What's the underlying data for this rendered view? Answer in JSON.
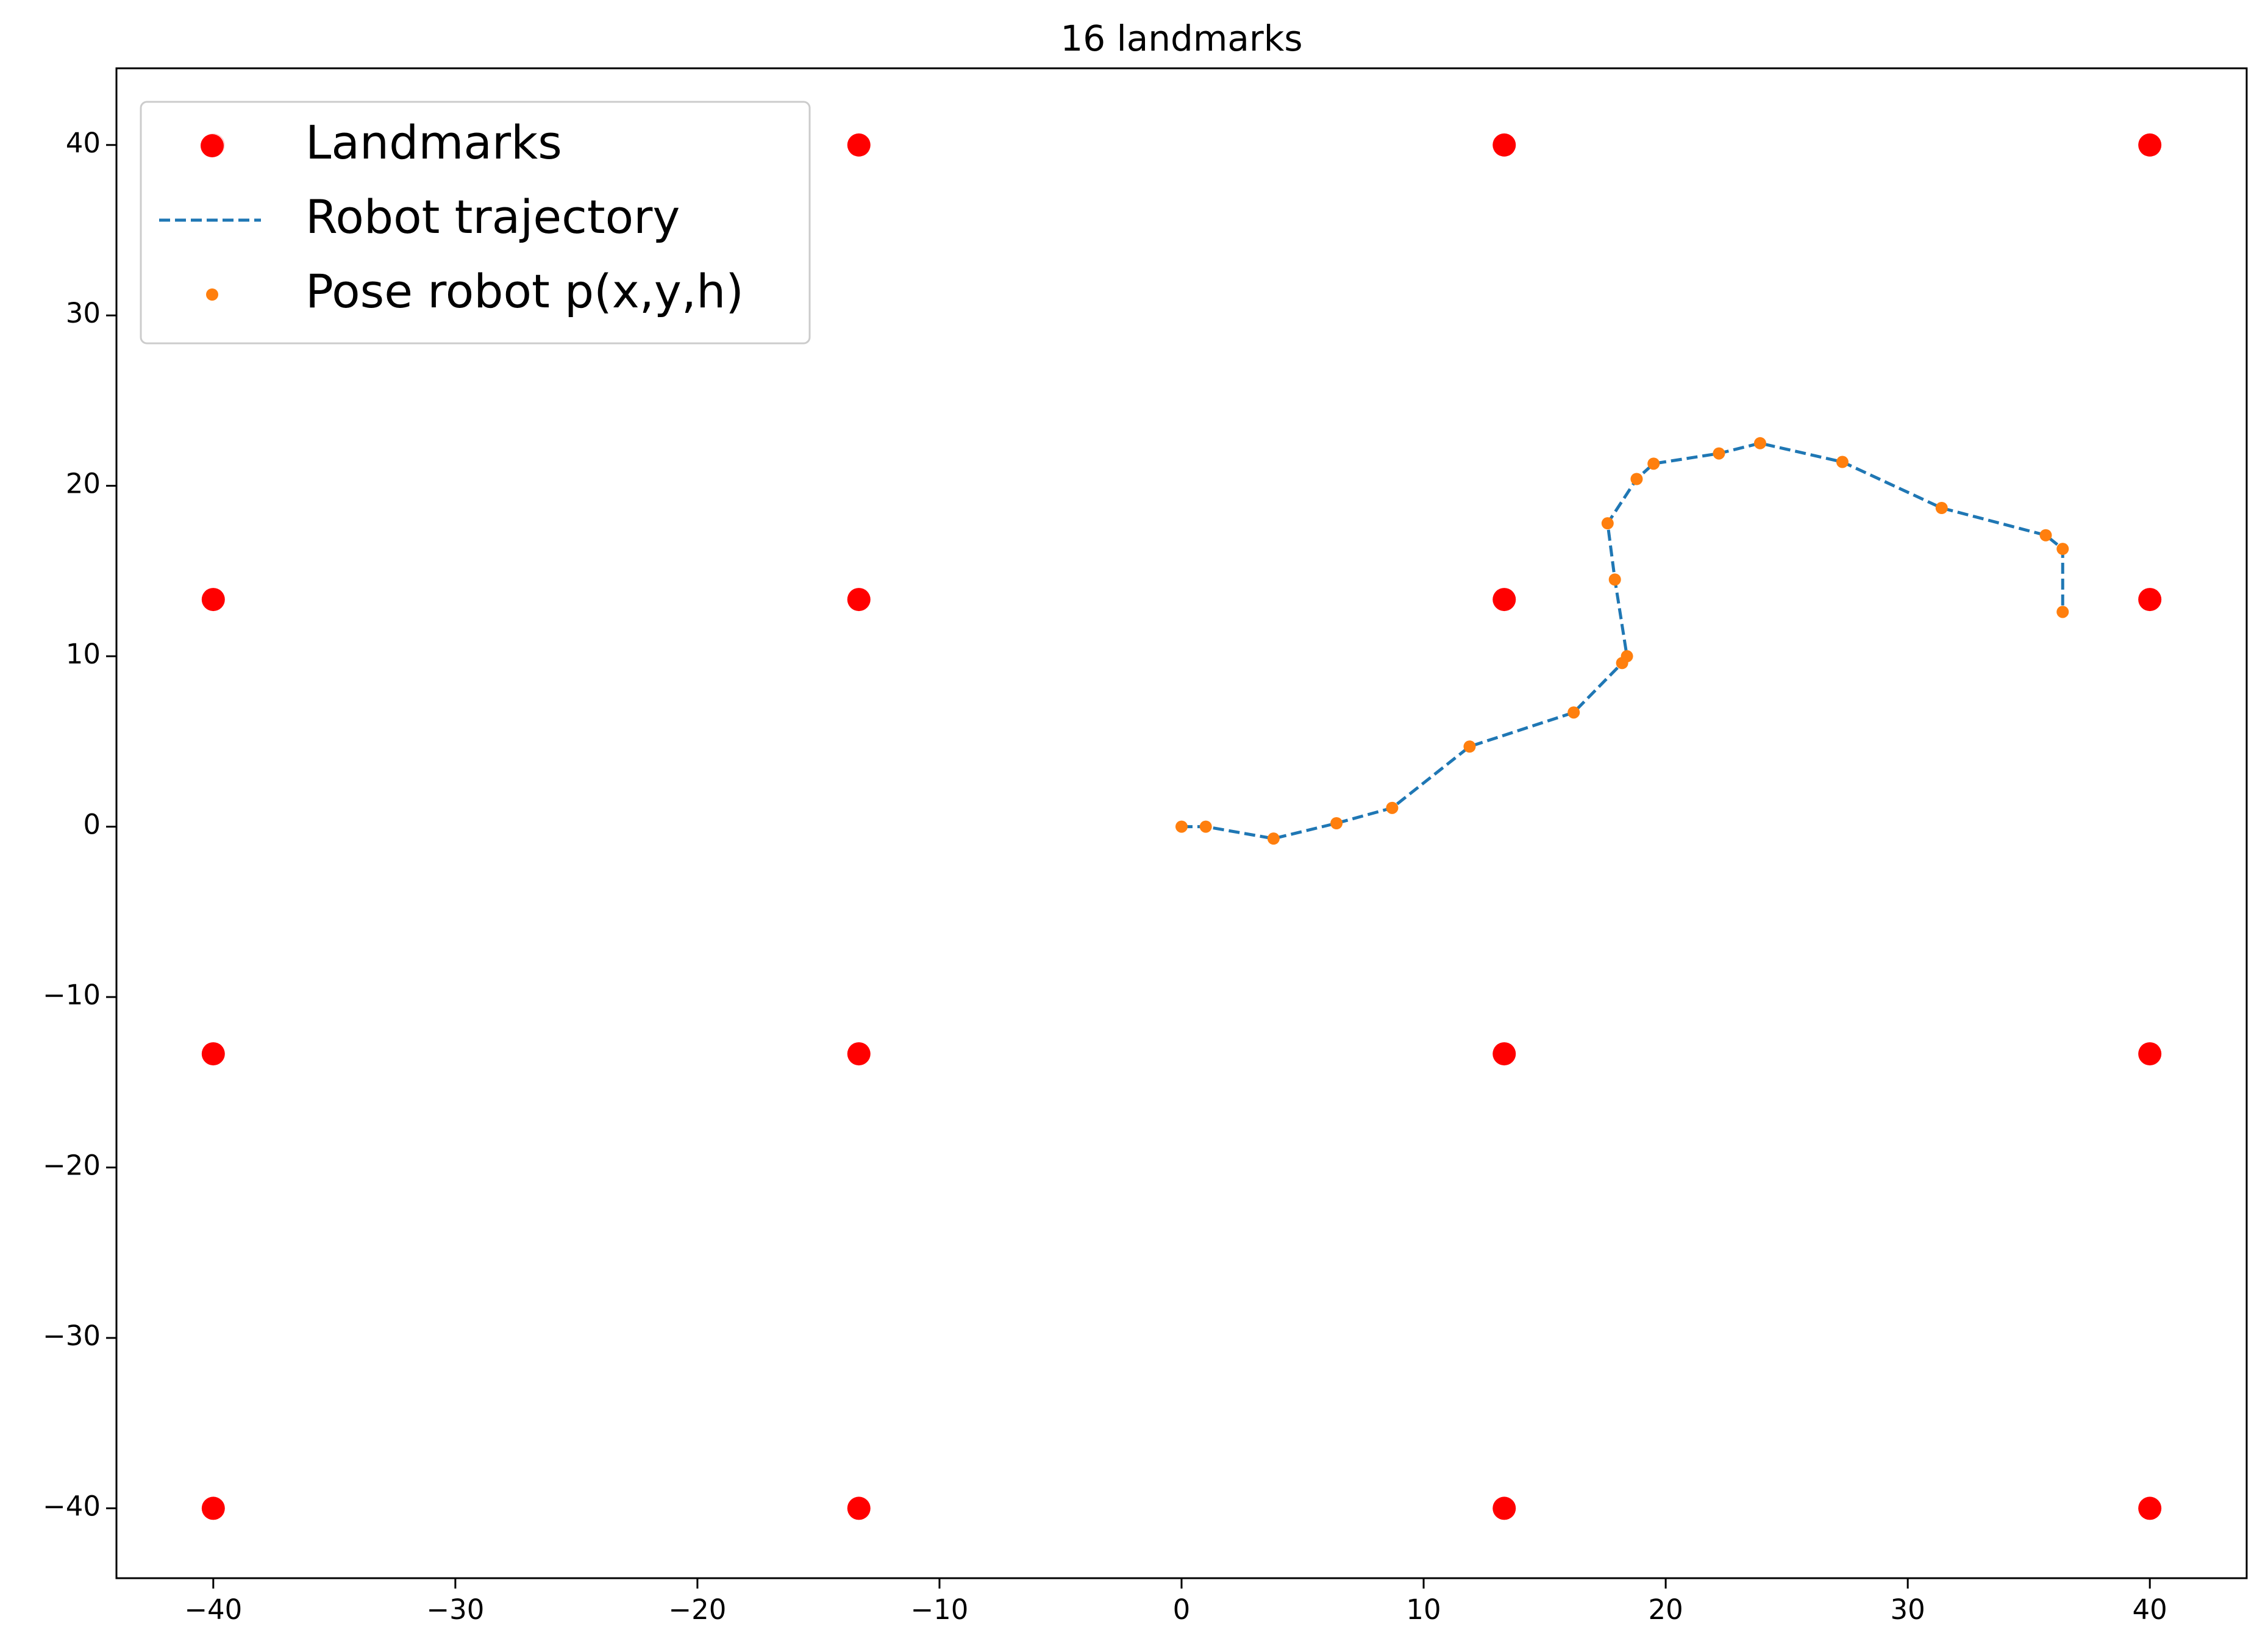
{
  "chart_data": {
    "type": "scatter",
    "title": "16 landmarks",
    "xlim": [
      -44,
      44
    ],
    "ylim": [
      -44.1,
      44.5
    ],
    "xticks": [
      {
        "value": -40,
        "label": "−40"
      },
      {
        "value": -30,
        "label": "−30"
      },
      {
        "value": -20,
        "label": "−20"
      },
      {
        "value": -10,
        "label": "−10"
      },
      0,
      10,
      20,
      30,
      40
    ],
    "yticks": [
      {
        "value": -40,
        "label": "−40"
      },
      {
        "value": -30,
        "label": "−30"
      },
      {
        "value": -20,
        "label": "−20"
      },
      {
        "value": -10,
        "label": "−10"
      },
      0,
      10,
      20,
      30,
      40
    ],
    "legend": "upper left",
    "series": [
      {
        "name": "Landmarks",
        "color": "#ff0000",
        "style": "marker",
        "x": [
          -40,
          -13.33,
          13.33,
          40,
          -40,
          -13.33,
          13.33,
          40,
          -40,
          -13.33,
          13.33,
          40,
          -40,
          -13.33,
          13.33,
          40
        ],
        "y": [
          40,
          40,
          40,
          40,
          13.33,
          13.33,
          13.33,
          13.33,
          -13.33,
          -13.33,
          -13.33,
          -13.33,
          -40,
          -40,
          -40,
          -40
        ]
      },
      {
        "name": "Robot trajectory",
        "color": "#1f77b4",
        "style": "dashed",
        "x": [
          0,
          1.0,
          3.8,
          6.4,
          8.7,
          11.9,
          16.2,
          18.2,
          18.4,
          17.9,
          17.6,
          18.8,
          19.5,
          22.2,
          23.9,
          27.3,
          31.4,
          35.7,
          36.4,
          36.4
        ],
        "y": [
          0,
          0,
          -0.7,
          0.2,
          1.1,
          4.7,
          6.7,
          9.6,
          10.0,
          14.5,
          17.8,
          20.4,
          21.3,
          21.9,
          22.5,
          21.4,
          18.7,
          17.1,
          16.3,
          12.6
        ]
      },
      {
        "name": "Pose robot p(x,y,h)",
        "color": "#ff7f0e",
        "style": "dot",
        "x": [
          0,
          1.0,
          3.8,
          6.4,
          8.7,
          11.9,
          16.2,
          18.2,
          18.4,
          17.9,
          17.6,
          18.8,
          19.5,
          22.2,
          23.9,
          27.3,
          31.4,
          35.7,
          36.4,
          36.4
        ],
        "y": [
          0,
          0,
          -0.7,
          0.2,
          1.1,
          4.7,
          6.7,
          9.6,
          10.0,
          14.5,
          17.8,
          20.4,
          21.3,
          21.9,
          22.5,
          21.4,
          18.7,
          17.1,
          16.3,
          12.6
        ]
      }
    ]
  }
}
